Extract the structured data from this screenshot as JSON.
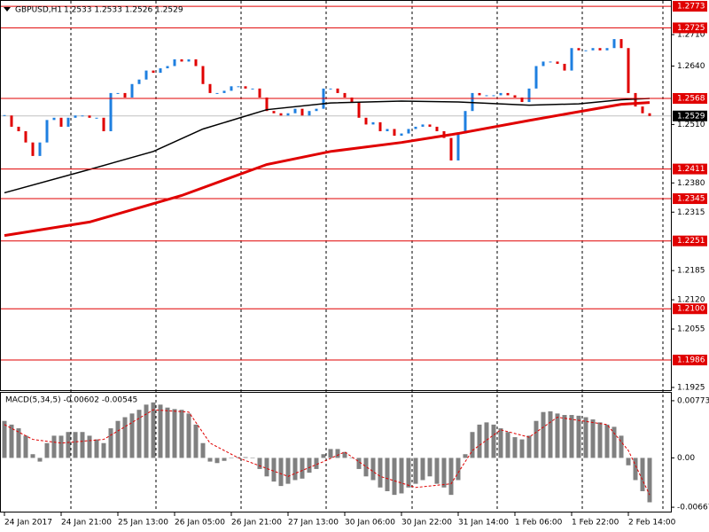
{
  "chart_data": [
    {
      "type": "candlestick",
      "title": "GBPUSD,H1",
      "ohlc": "1.2533 1.2533 1.2526 1.2529",
      "up_color": "#1e7fe0",
      "down_color": "#e00000",
      "xlim": [
        -0.625,
        94
      ],
      "ylim": [
        1.1919,
        1.2785
      ],
      "xticks": [
        {
          "value": 0,
          "label": "24 Jan 2017"
        },
        {
          "value": 8,
          "label": "24 Jan 21:00"
        },
        {
          "value": 16,
          "label": "25 Jan 13:00"
        },
        {
          "value": 24,
          "label": "26 Jan 05:00"
        },
        {
          "value": 32,
          "label": "26 Jan 21:00"
        },
        {
          "value": 40,
          "label": "27 Jan 13:00"
        },
        {
          "value": 48,
          "label": "30 Jan 06:00"
        },
        {
          "value": 56,
          "label": "30 Jan 22:00"
        },
        {
          "value": 64,
          "label": "31 Jan 14:00"
        },
        {
          "value": 72,
          "label": "1 Feb 06:00"
        },
        {
          "value": 80,
          "label": "1 Feb 22:00"
        },
        {
          "value": 88,
          "label": "2 Feb 14:00"
        }
      ],
      "yticks": [
        {
          "value": 1.271,
          "label": "1.2710"
        },
        {
          "value": 1.264,
          "label": "1.2640"
        },
        {
          "value": 1.251,
          "label": "1.2510"
        },
        {
          "value": 1.238,
          "label": "1.2380"
        },
        1.2315,
        1.2185,
        {
          "value": 1.212,
          "label": "1.2120"
        },
        1.2055,
        1.1925
      ],
      "levels": [
        1.2773,
        1.2725,
        1.2568,
        1.2411,
        1.2345,
        1.2251,
        {
          "value": 1.21,
          "label": "1.2100"
        },
        1.1986
      ],
      "level_color": "#e00000",
      "current_price": 1.2529,
      "close": [
        1.253,
        1.2505,
        1.2495,
        1.247,
        1.244,
        1.247,
        1.252,
        1.2525,
        1.2505,
        1.2525,
        1.253,
        1.253,
        1.2525,
        1.2525,
        1.2495,
        1.258,
        1.258,
        1.257,
        1.26,
        1.261,
        1.263,
        1.2625,
        1.2635,
        1.264,
        1.2655,
        1.265,
        1.2655,
        1.264,
        1.26,
        1.258,
        1.258,
        1.2585,
        1.2595,
        1.2595,
        1.259,
        1.259,
        1.257,
        1.254,
        1.2535,
        1.253,
        1.2535,
        1.2545,
        1.253,
        1.254,
        1.2545,
        1.259,
        1.259,
        1.258,
        1.257,
        1.256,
        1.2525,
        1.251,
        1.2515,
        1.2495,
        1.25,
        1.2485,
        1.249,
        1.25,
        1.2505,
        1.251,
        1.2505,
        1.2495,
        1.248,
        1.243,
        1.249,
        1.254,
        1.258,
        1.2575,
        1.2575,
        1.2575,
        1.258,
        1.2575,
        1.257,
        1.256,
        1.259,
        1.264,
        1.265,
        1.265,
        1.2645,
        1.263,
        1.268,
        1.2675,
        1.2675,
        1.268,
        1.2675,
        1.268,
        1.27,
        1.268,
        1.258,
        1.255,
        1.2535,
        1.2529
      ],
      "series": [
        {
          "color": "#000000",
          "x": [
            0,
            12,
            21,
            28,
            37,
            46,
            56,
            64,
            74,
            81,
            87,
            91
          ],
          "values": [
            1.2358,
            1.241,
            1.245,
            1.25,
            1.2543,
            1.2558,
            1.2562,
            1.256,
            1.2553,
            1.2556,
            1.2565,
            1.2568
          ]
        },
        {
          "color": "#e00000",
          "x": [
            0,
            12,
            25,
            37,
            46,
            56,
            64,
            74,
            87,
            91
          ],
          "values": [
            1.2263,
            1.2293,
            1.2352,
            1.2421,
            1.245,
            1.247,
            1.249,
            1.2519,
            1.2555,
            1.2559
          ]
        }
      ]
    },
    {
      "type": "bar",
      "title": "MACD(5,34,5) -0.00602 -0.00545",
      "color": "#808080",
      "xlim": [
        -0.625,
        94
      ],
      "ylim": [
        -0.00726,
        0.0088
      ],
      "yticks": [
        0.00773,
        {
          "value": 0,
          "label": "0.00"
        },
        -0.00667
      ],
      "values": [
        0.005,
        0.0045,
        0.004,
        0.003,
        0.0005,
        -0.0005,
        0.002,
        0.003,
        0.003,
        0.0035,
        0.0035,
        0.0035,
        0.003,
        0.0025,
        0.002,
        0.004,
        0.005,
        0.0055,
        0.006,
        0.0065,
        0.0072,
        0.0075,
        0.0072,
        0.0068,
        0.0066,
        0.0065,
        0.006,
        0.0045,
        0.002,
        -0.0005,
        -0.0007,
        -0.0004,
        0.0,
        0.0001,
        0.0001,
        0.0,
        -0.0015,
        -0.0025,
        -0.0032,
        -0.0038,
        -0.0035,
        -0.003,
        -0.0028,
        -0.002,
        -0.0015,
        0.0005,
        0.0012,
        0.0012,
        0.0008,
        0.0,
        -0.0015,
        -0.0025,
        -0.003,
        -0.004,
        -0.0045,
        -0.005,
        -0.0048,
        -0.004,
        -0.0035,
        -0.003,
        -0.0025,
        -0.0035,
        -0.004,
        -0.005,
        -0.003,
        0.0005,
        0.0035,
        0.0045,
        0.0048,
        0.0045,
        0.004,
        0.0035,
        0.0028,
        0.0025,
        0.003,
        0.005,
        0.0062,
        0.0063,
        0.006,
        0.0058,
        0.0058,
        0.0057,
        0.0055,
        0.0052,
        0.0048,
        0.0045,
        0.0042,
        0.003,
        -0.001,
        -0.003,
        -0.0045,
        -0.006
      ],
      "signal": {
        "color": "#e00000",
        "x": [
          0,
          4,
          8,
          14,
          21,
          26,
          29,
          33,
          40,
          45,
          48,
          53,
          58,
          63,
          66,
          70,
          74,
          78,
          85,
          88,
          91
        ],
        "values": [
          0.0045,
          0.0025,
          0.002,
          0.0025,
          0.0065,
          0.0062,
          0.002,
          0.0,
          -0.0025,
          -0.0005,
          0.0008,
          -0.0025,
          -0.004,
          -0.0035,
          0.001,
          0.0038,
          0.0028,
          0.0055,
          0.0045,
          0.001,
          -0.005
        ]
      }
    }
  ]
}
